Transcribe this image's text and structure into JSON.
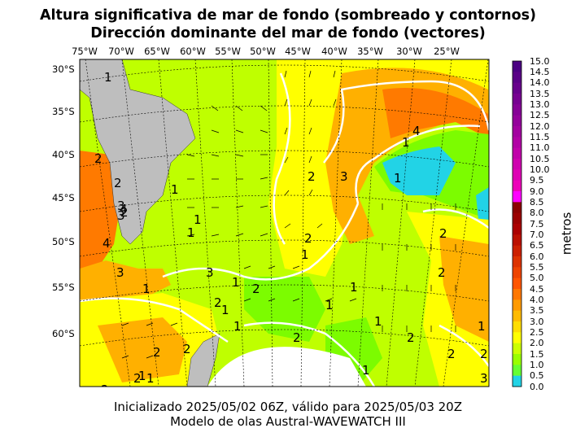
{
  "title_line1": "Altura significativa de mar de fondo (sombreado y contornos)",
  "title_line2": "Dirección dominante del mar de fondo (vectores)",
  "lon_labels": [
    "75°W",
    "70°W",
    "65°W",
    "60°W",
    "55°W",
    "50°W",
    "45°W",
    "40°W",
    "35°W",
    "30°W",
    "25°W"
  ],
  "lat_labels": [
    "30°S",
    "35°S",
    "40°S",
    "45°S",
    "50°S",
    "55°S",
    "60°S"
  ],
  "colorbar": {
    "label": "metros",
    "ticks": [
      "15.0",
      "14.5",
      "14.0",
      "13.5",
      "13.0",
      "12.5",
      "12.0",
      "11.5",
      "11.0",
      "10.5",
      "10.0",
      "9.5",
      "9.0",
      "8.5",
      "8.0",
      "7.5",
      "7.0",
      "6.5",
      "6.0",
      "5.5",
      "5.0",
      "4.5",
      "4.0",
      "3.5",
      "3.0",
      "2.5",
      "2.0",
      "1.5",
      "1.0",
      "0.5",
      "0.0"
    ],
    "colors": [
      "#4b0082",
      "#5a0087",
      "#68008c",
      "#770091",
      "#860096",
      "#94009b",
      "#a300a0",
      "#b200a5",
      "#c100aa",
      "#cf00af",
      "#de00b4",
      "#ed00b9",
      "#ff00ff",
      "#8b0000",
      "#9b0000",
      "#ab0000",
      "#bb1000",
      "#cc2000",
      "#dd3300",
      "#ee4400",
      "#ff5500",
      "#ff7700",
      "#ff9a00",
      "#ffbb00",
      "#ffdd00",
      "#ffff00",
      "#ccff00",
      "#99ff00",
      "#66ff33",
      "#22d3e6"
    ]
  },
  "contour_labels": [
    "1",
    "1",
    "2",
    "3",
    "4",
    "3",
    "2",
    "2",
    "2",
    "3",
    "1",
    "1",
    "1",
    "2",
    "1",
    "1",
    "1",
    "2",
    "2",
    "3",
    "1",
    "4",
    "2",
    "1",
    "2",
    "2",
    "1",
    "3",
    "1",
    "1",
    "2",
    "2",
    "2",
    "1",
    "1",
    "3",
    "4",
    "2",
    "1",
    "2",
    "2",
    "1",
    "2",
    "1"
  ],
  "footer_line1": "Inicializado 2025/05/02 06Z, válido para 2025/05/03 20Z",
  "footer_line2": "Modelo de olas Austral-WAVEWATCH III"
}
